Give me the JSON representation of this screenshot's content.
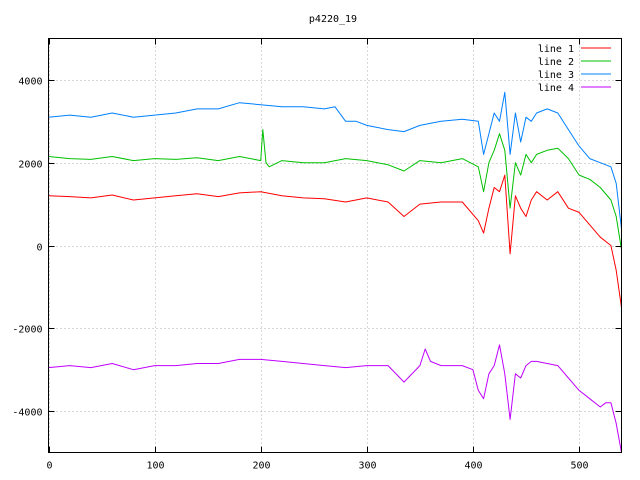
{
  "chart_data": {
    "type": "line",
    "title": "p4220_19",
    "xlabel": "",
    "ylabel": "",
    "xlim": [
      0,
      540
    ],
    "ylim": [
      -5000,
      5000
    ],
    "x_ticks": [
      0,
      100,
      200,
      300,
      400,
      500
    ],
    "y_ticks": [
      -4000,
      -2000,
      0,
      2000,
      4000
    ],
    "grid": true,
    "legend_position": "top-right",
    "series": [
      {
        "name": "line 1",
        "color": "#ff0000",
        "x": [
          0,
          20,
          40,
          60,
          80,
          100,
          120,
          140,
          160,
          180,
          200,
          220,
          240,
          260,
          280,
          300,
          320,
          335,
          350,
          370,
          390,
          405,
          410,
          415,
          420,
          425,
          430,
          435,
          440,
          445,
          450,
          455,
          460,
          470,
          480,
          490,
          500,
          510,
          520,
          530,
          535,
          540
        ],
        "values": [
          1200,
          1180,
          1150,
          1220,
          1100,
          1150,
          1200,
          1250,
          1180,
          1270,
          1300,
          1200,
          1150,
          1130,
          1050,
          1150,
          1050,
          700,
          1000,
          1050,
          1050,
          600,
          300,
          900,
          1400,
          1300,
          1700,
          -200,
          1200,
          900,
          700,
          1100,
          1300,
          1100,
          1300,
          900,
          800,
          500,
          200,
          0,
          -600,
          -1500
        ]
      },
      {
        "name": "line 2",
        "color": "#00c000",
        "x": [
          0,
          20,
          40,
          60,
          80,
          100,
          120,
          140,
          160,
          180,
          200,
          202,
          205,
          208,
          220,
          240,
          260,
          280,
          300,
          320,
          335,
          350,
          370,
          390,
          405,
          410,
          415,
          420,
          425,
          430,
          435,
          440,
          445,
          450,
          455,
          460,
          470,
          480,
          490,
          500,
          510,
          520,
          530,
          535,
          540
        ],
        "values": [
          2150,
          2100,
          2080,
          2150,
          2050,
          2100,
          2080,
          2120,
          2050,
          2150,
          2050,
          2800,
          2000,
          1900,
          2050,
          2000,
          2000,
          2100,
          2050,
          1950,
          1800,
          2050,
          2000,
          2100,
          1900,
          1300,
          2000,
          2300,
          2700,
          2300,
          900,
          2000,
          1700,
          2200,
          2000,
          2200,
          2300,
          2350,
          2100,
          1700,
          1600,
          1400,
          1100,
          700,
          -100
        ]
      },
      {
        "name": "line 3",
        "color": "#0080ff",
        "x": [
          0,
          20,
          40,
          60,
          80,
          100,
          120,
          140,
          160,
          180,
          200,
          220,
          240,
          260,
          270,
          280,
          290,
          300,
          320,
          335,
          350,
          370,
          390,
          405,
          410,
          415,
          420,
          425,
          430,
          435,
          440,
          445,
          450,
          455,
          460,
          470,
          480,
          490,
          500,
          510,
          520,
          530,
          535,
          540
        ],
        "values": [
          3100,
          3150,
          3100,
          3200,
          3100,
          3150,
          3200,
          3300,
          3300,
          3450,
          3400,
          3350,
          3350,
          3300,
          3350,
          3000,
          3000,
          2900,
          2800,
          2750,
          2900,
          3000,
          3050,
          3000,
          2200,
          2700,
          3200,
          3000,
          3700,
          2200,
          3200,
          2500,
          3100,
          3000,
          3200,
          3300,
          3200,
          2800,
          2400,
          2100,
          2000,
          1900,
          1500,
          400
        ]
      },
      {
        "name": "line 4",
        "color": "#c000ff",
        "x": [
          0,
          20,
          40,
          60,
          80,
          100,
          120,
          140,
          160,
          180,
          200,
          220,
          240,
          260,
          280,
          300,
          320,
          335,
          350,
          355,
          360,
          370,
          390,
          400,
          405,
          410,
          415,
          420,
          425,
          430,
          435,
          440,
          445,
          450,
          455,
          460,
          470,
          480,
          490,
          500,
          510,
          520,
          525,
          530,
          535,
          540
        ],
        "values": [
          -2950,
          -2900,
          -2950,
          -2850,
          -3000,
          -2900,
          -2900,
          -2850,
          -2850,
          -2750,
          -2750,
          -2800,
          -2850,
          -2900,
          -2950,
          -2900,
          -2900,
          -3300,
          -2900,
          -2500,
          -2800,
          -2900,
          -2900,
          -3000,
          -3500,
          -3700,
          -3100,
          -2900,
          -2400,
          -3100,
          -4200,
          -3100,
          -3200,
          -2900,
          -2800,
          -2800,
          -2850,
          -2900,
          -3200,
          -3500,
          -3700,
          -3900,
          -3800,
          -3800,
          -4300,
          -5000
        ]
      }
    ]
  }
}
